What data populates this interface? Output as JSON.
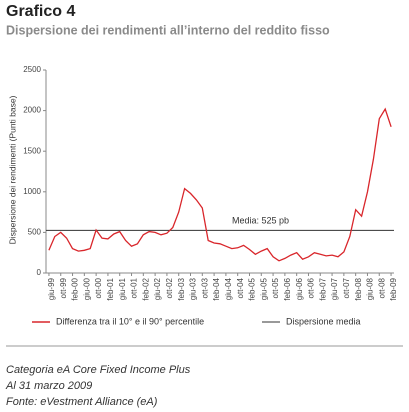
{
  "chart_data": {
    "type": "line",
    "title": "Grafico 4",
    "subtitle": "Dispersione dei rendimenti all’interno del reddito fisso",
    "y_label": "Dispersione dei rendimenti (Punti base)",
    "categories": [
      "giu-99",
      null,
      "ott-99",
      null,
      "feb-00",
      null,
      "giu-00",
      null,
      "ott-00",
      null,
      "feb-01",
      null,
      "giu-01",
      null,
      "ott-01",
      null,
      "feb-02",
      null,
      "giu-02",
      null,
      "ott-02",
      null,
      "feb-03",
      null,
      "giu-03",
      null,
      "ott-03",
      null,
      "feb-04",
      null,
      "giu-04",
      null,
      "ott-04",
      null,
      "feb-05",
      null,
      "giu-05",
      null,
      "ott-05",
      null,
      "feb-06",
      null,
      "giu-06",
      null,
      "ott-06",
      null,
      "feb-07",
      null,
      "giu-07",
      null,
      "ott-07",
      null,
      "feb-08",
      null,
      "giu-08",
      null,
      "ott-08",
      null,
      "feb-09"
    ],
    "series": [
      {
        "name": "Differenza tra il 10° e il 90° percentile",
        "color": "#d9262b",
        "values": [
          280,
          450,
          500,
          430,
          300,
          270,
          280,
          300,
          530,
          430,
          420,
          480,
          510,
          400,
          330,
          360,
          470,
          510,
          500,
          470,
          490,
          560,
          750,
          1040,
          980,
          900,
          800,
          400,
          370,
          360,
          330,
          300,
          310,
          340,
          290,
          230,
          270,
          300,
          200,
          150,
          180,
          220,
          250,
          170,
          200,
          250,
          230,
          210,
          220,
          200,
          260,
          450,
          780,
          700,
          1000,
          1400,
          1900,
          2020,
          1800
        ]
      }
    ],
    "reference_line": {
      "name": "Dispersione media",
      "value": 525,
      "color": "#333333",
      "label": "Media: 525 pb"
    },
    "ylim": [
      0,
      2500
    ],
    "yticks": [
      0,
      500,
      1000,
      1500,
      2000,
      2500
    ]
  },
  "notes": [
    "Categoria eA Core Fixed Income Plus",
    "Al 31 marzo 2009",
    "Fonte: eVestment Alliance (eA)"
  ]
}
